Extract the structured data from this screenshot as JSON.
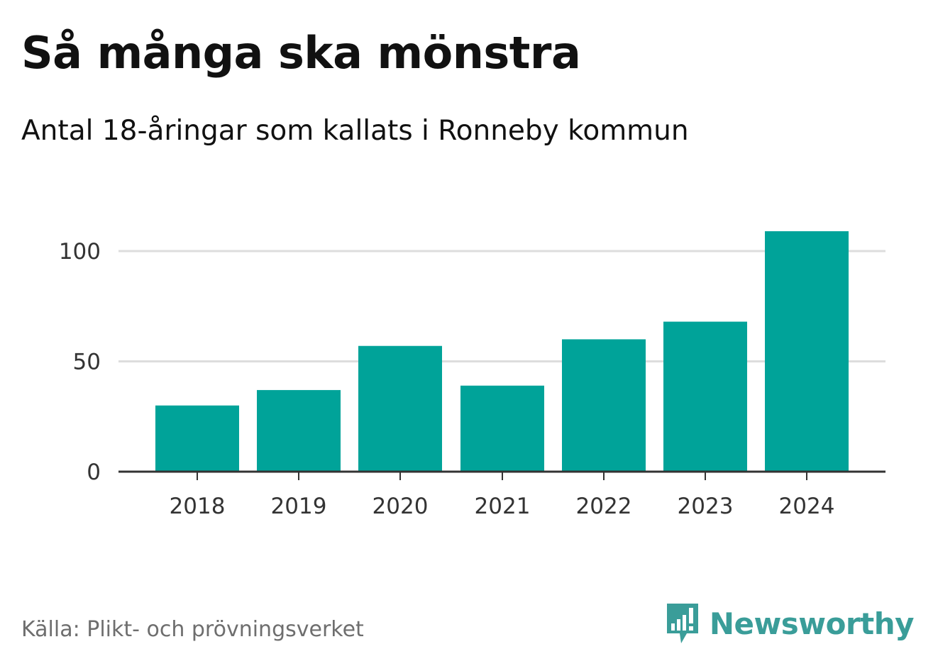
{
  "header": {
    "title": "Så många ska mönstra",
    "subtitle": "Antal 18-åringar som kallats i Ronneby kommun"
  },
  "footer": {
    "source": "Källa: Plikt- och prövningsverket",
    "brand": "Newsworthy",
    "brand_icon": "bar-chart-speech-bubble-icon"
  },
  "colors": {
    "bar": "#00a399",
    "gridline": "#dddddd",
    "axis": "#333333",
    "brand": "#3a9d99"
  },
  "chart_data": {
    "type": "bar",
    "title": "Så många ska mönstra",
    "subtitle": "Antal 18-åringar som kallats i Ronneby kommun",
    "categories": [
      "2018",
      "2019",
      "2020",
      "2021",
      "2022",
      "2023",
      "2024"
    ],
    "values": [
      30,
      37,
      57,
      39,
      60,
      68,
      109
    ],
    "xlabel": "",
    "ylabel": "",
    "ylim": [
      0,
      110
    ],
    "yticks": [
      0,
      50,
      100
    ],
    "grid": true
  }
}
